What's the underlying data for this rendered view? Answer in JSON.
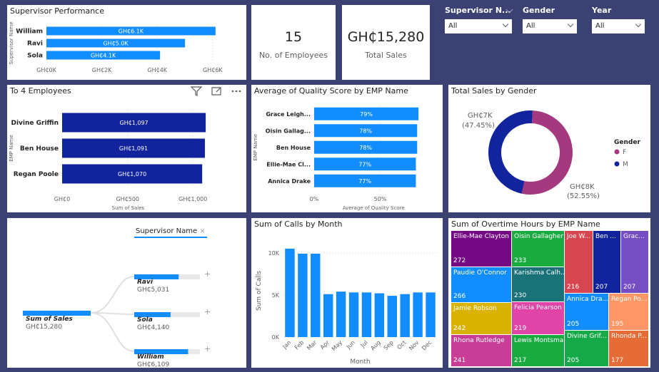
{
  "kpis": {
    "employees": {
      "value": "15",
      "label": "No. of Employees"
    },
    "sales": {
      "value": "GH₵15,280",
      "label": "Total Sales"
    }
  },
  "slicers": [
    {
      "label": "Supervisor N...",
      "value": "All"
    },
    {
      "label": "Gender",
      "value": "All"
    },
    {
      "label": "Year",
      "value": "All"
    }
  ],
  "supervisor_chart": {
    "title": "Supervisor Performance",
    "ylabel": "Supervisor Name",
    "categories": [
      "William",
      "Ravi",
      "Sola"
    ],
    "values": [
      6.1,
      5.0,
      4.1
    ],
    "data_labels": [
      "GH₵6.1K",
      "GH₵5.0K",
      "GH₵4.1K"
    ],
    "ticks": [
      "GH₵0K",
      "GH₵2K",
      "GH₵4K",
      "GH₵6K"
    ],
    "xlim": [
      0,
      6.8
    ],
    "color": "#118dff"
  },
  "top_employees": {
    "title": "To 4 Employees",
    "ylabel": "EMP Name",
    "xlabel": "Sum of Sales",
    "categories": [
      "Divine Griffin",
      "Ben House",
      "Regan Poole"
    ],
    "values": [
      1097,
      1091,
      1070
    ],
    "data_labels": [
      "GH₵1,097",
      "GH₵1,091",
      "GH₵1,070"
    ],
    "ticks": [
      "GH₵0",
      "GH₵500",
      "GH₵1,000"
    ],
    "xlim": [
      0,
      1200
    ],
    "color": "#12239e"
  },
  "quality": {
    "title": "Average of Quality Score by EMP Name",
    "ylabel": "EMP Name",
    "xlabel": "Average of Quality Score",
    "categories": [
      "Grace Leigh...",
      "Oisin Gallag...",
      "Ben House",
      "Ellie-Mae Cl...",
      "Annica Drake"
    ],
    "values": [
      79,
      78,
      78,
      77,
      77
    ],
    "data_labels": [
      "79%",
      "78%",
      "78%",
      "77%",
      "77%"
    ],
    "ticks": [
      "0%",
      "50%"
    ],
    "xlim": [
      0,
      100
    ],
    "color": "#118dff"
  },
  "gender": {
    "title": "Total Sales by Gender",
    "legend_title": "Gender",
    "slices": [
      {
        "name": "F",
        "value": 52.55,
        "label": "GH₵8K",
        "pct": "(52.55%)",
        "color": "#a4397f"
      },
      {
        "name": "M",
        "value": 47.45,
        "label": "GH₵7K",
        "pct": "(47.45%)",
        "color": "#12239e"
      }
    ]
  },
  "decomp": {
    "filter_label": "Supervisor Name",
    "root": {
      "label": "Sum of Sales",
      "value": "GH₵15,280"
    },
    "children": [
      {
        "name": "Ravi",
        "value": "GH₵5,031",
        "fraction": 0.33
      },
      {
        "name": "Sola",
        "value": "GH₵4,140",
        "fraction": 0.27
      },
      {
        "name": "William",
        "value": "GH₵6,109",
        "fraction": 0.4
      }
    ]
  },
  "calls": {
    "title": "Sum of Calls by Month",
    "ylabel": "Sum of Calls",
    "xlabel": "Month",
    "categories": [
      "Jan",
      "Feb",
      "Mar",
      "Apr",
      "May",
      "Jun",
      "Jul",
      "Aug",
      "Sep",
      "Oct",
      "Nov",
      "Dec"
    ],
    "values": [
      10500,
      9900,
      9900,
      5100,
      5400,
      5300,
      5300,
      5200,
      4900,
      5100,
      5300,
      5300
    ],
    "ticks": [
      "0K",
      "5K",
      "10K"
    ],
    "ylim": [
      0,
      11000
    ],
    "color": "#118dff"
  },
  "overtime": {
    "title": "Sum of Overtime Hours by EMP Name",
    "tiles": [
      {
        "name": "Ellie-Mae Clayton",
        "value": "272",
        "color": "#750985"
      },
      {
        "name": "Paudie O'Connor",
        "value": "266",
        "color": "#118dff"
      },
      {
        "name": "Jamie Robson",
        "value": "242",
        "color": "#d9b300"
      },
      {
        "name": "Rhona Rutledge",
        "value": "241",
        "color": "#c83d95"
      },
      {
        "name": "Oisin Gallagher",
        "value": "233",
        "color": "#1aab40"
      },
      {
        "name": "Karishma Calh...",
        "value": "230",
        "color": "#197278"
      },
      {
        "name": "Felicia Pearson",
        "value": "219",
        "color": "#e044a7"
      },
      {
        "name": "Lewis Montsma",
        "value": "217",
        "color": "#1aab40"
      },
      {
        "name": "Joe W...",
        "value": "216",
        "color": "#d64550"
      },
      {
        "name": "Ben ...",
        "value": "207",
        "color": "#12239e"
      },
      {
        "name": "Grac...",
        "value": "207",
        "color": "#744ec2"
      },
      {
        "name": "Annica Dra...",
        "value": "205",
        "color": "#118dff"
      },
      {
        "name": "Regan Po...",
        "value": "195",
        "color": "#fe9666"
      },
      {
        "name": "Divine Grif...",
        "value": "205",
        "color": "#15a94a"
      },
      {
        "name": "Rhonda P...",
        "value": "177",
        "color": "#e66c37"
      }
    ]
  }
}
